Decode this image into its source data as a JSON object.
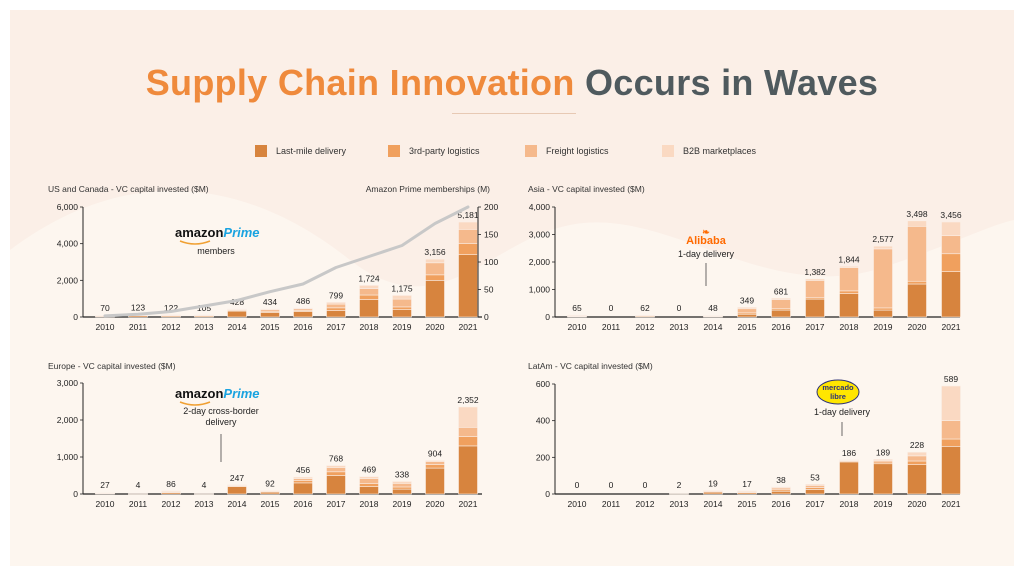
{
  "title": {
    "part1": "Supply Chain Innovation",
    "part2": "Occurs in Waves"
  },
  "colors": {
    "accent": "#ef8a3c",
    "title_gray": "#4f5a5e",
    "background": "#fbefe7",
    "prime_line": "#c8c8c8"
  },
  "legend": [
    {
      "label": "Last-mile delivery",
      "color": "#d7843e"
    },
    {
      "label": "3rd-party logistics",
      "color": "#f0a05e"
    },
    {
      "label": "Freight logistics",
      "color": "#f5b98c"
    },
    {
      "label": "B2B marketplaces",
      "color": "#fad9c2"
    }
  ],
  "chart_data": [
    {
      "type": "bar",
      "title": "US and Canada - VC capital invested ($M)",
      "categories": [
        "2010",
        "2011",
        "2012",
        "2013",
        "2014",
        "2015",
        "2016",
        "2017",
        "2018",
        "2019",
        "2020",
        "2021"
      ],
      "totals": [
        70,
        123,
        122,
        105,
        428,
        434,
        486,
        799,
        1724,
        1175,
        3156,
        5181
      ],
      "total_labels": [
        "70",
        "123",
        "122",
        "105",
        "428",
        "434",
        "486",
        "799",
        "1,724",
        "1,175",
        "3,156",
        "5,181"
      ],
      "series": [
        {
          "name": "Last-mile delivery",
          "values": [
            40,
            70,
            60,
            60,
            320,
            250,
            300,
            350,
            950,
            400,
            2000,
            3400
          ]
        },
        {
          "name": "3rd-party logistics",
          "values": [
            10,
            20,
            20,
            15,
            40,
            60,
            60,
            150,
            250,
            150,
            300,
            600
          ]
        },
        {
          "name": "Freight logistics",
          "values": [
            10,
            23,
            22,
            20,
            40,
            84,
            86,
            200,
            350,
            425,
            656,
            781
          ]
        },
        {
          "name": "B2B marketplaces",
          "values": [
            10,
            10,
            20,
            10,
            28,
            40,
            40,
            99,
            174,
            200,
            200,
            400
          ]
        }
      ],
      "ylim": [
        0,
        6000
      ],
      "yticks": [
        "0",
        "2,000",
        "4,000",
        "6,000"
      ],
      "secondary_axis": {
        "label": "Amazon Prime memberships (M)",
        "ylim": [
          0,
          200
        ],
        "yticks": [
          "0",
          "50",
          "100",
          "150",
          "200"
        ],
        "values": [
          2,
          5,
          10,
          20,
          30,
          46,
          60,
          90,
          110,
          130,
          170,
          200
        ]
      },
      "annotation": {
        "logo_word1": "amazon",
        "logo_word2": "Prime",
        "text": "members"
      }
    },
    {
      "type": "bar",
      "title": "Asia - VC capital invested ($M)",
      "categories": [
        "2010",
        "2011",
        "2012",
        "2013",
        "2014",
        "2015",
        "2016",
        "2017",
        "2018",
        "2019",
        "2020",
        "2021"
      ],
      "totals": [
        65,
        0,
        62,
        0,
        48,
        349,
        681,
        1382,
        1844,
        2577,
        3498,
        3456
      ],
      "total_labels": [
        "65",
        "0",
        "62",
        "0",
        "48",
        "349",
        "681",
        "1,382",
        "1,844",
        "2,577",
        "3,498",
        "3,456"
      ],
      "series": [
        {
          "name": "Last-mile delivery",
          "values": [
            20,
            0,
            30,
            0,
            20,
            100,
            250,
            650,
            850,
            250,
            1200,
            1650
          ]
        },
        {
          "name": "3rd-party logistics",
          "values": [
            10,
            0,
            10,
            0,
            10,
            50,
            50,
            50,
            100,
            80,
            100,
            650
          ]
        },
        {
          "name": "Freight logistics",
          "values": [
            25,
            0,
            12,
            0,
            10,
            150,
            331,
            632,
            844,
            2147,
            1998,
            656
          ]
        },
        {
          "name": "B2B marketplaces",
          "values": [
            10,
            0,
            10,
            0,
            8,
            49,
            50,
            50,
            50,
            100,
            200,
            500
          ]
        }
      ],
      "ylim": [
        0,
        4000
      ],
      "yticks": [
        "0",
        "1,000",
        "2,000",
        "3,000",
        "4,000"
      ],
      "annotation": {
        "logo_word1": "Alibaba",
        "text": "1-day delivery"
      }
    },
    {
      "type": "bar",
      "title": "Europe - VC capital invested ($M)",
      "categories": [
        "2010",
        "2011",
        "2012",
        "2013",
        "2014",
        "2015",
        "2016",
        "2017",
        "2018",
        "2019",
        "2020",
        "2021"
      ],
      "totals": [
        27,
        4,
        86,
        4,
        247,
        92,
        456,
        768,
        469,
        338,
        904,
        2352
      ],
      "total_labels": [
        "27",
        "4",
        "86",
        "4",
        "247",
        "92",
        "456",
        "768",
        "469",
        "338",
        "904",
        "2,352"
      ],
      "series": [
        {
          "name": "Last-mile delivery",
          "values": [
            15,
            2,
            40,
            2,
            200,
            50,
            300,
            500,
            200,
            130,
            700,
            1300
          ]
        },
        {
          "name": "3rd-party logistics",
          "values": [
            4,
            1,
            16,
            1,
            20,
            10,
            60,
            100,
            80,
            60,
            100,
            250
          ]
        },
        {
          "name": "Freight logistics",
          "values": [
            4,
            1,
            20,
            1,
            17,
            22,
            56,
            118,
            139,
            98,
            74,
            252
          ]
        },
        {
          "name": "B2B marketplaces",
          "values": [
            4,
            0,
            10,
            0,
            10,
            10,
            40,
            50,
            50,
            50,
            30,
            550
          ]
        }
      ],
      "ylim": [
        0,
        3000
      ],
      "yticks": [
        "0",
        "1,000",
        "2,000",
        "3,000"
      ],
      "annotation": {
        "logo_word1": "amazon",
        "logo_word2": "Prime",
        "text": "2-day cross-border delivery"
      }
    },
    {
      "type": "bar",
      "title": "LatAm - VC capital invested ($M)",
      "categories": [
        "2010",
        "2011",
        "2012",
        "2013",
        "2014",
        "2015",
        "2016",
        "2017",
        "2018",
        "2019",
        "2020",
        "2021"
      ],
      "totals": [
        0,
        0,
        0,
        2,
        19,
        17,
        38,
        53,
        186,
        189,
        228,
        589
      ],
      "total_labels": [
        "0",
        "0",
        "0",
        "2",
        "19",
        "17",
        "38",
        "53",
        "186",
        "189",
        "228",
        "589"
      ],
      "series": [
        {
          "name": "Last-mile delivery",
          "values": [
            0,
            0,
            0,
            1,
            10,
            8,
            15,
            25,
            175,
            165,
            160,
            260
          ]
        },
        {
          "name": "3rd-party logistics",
          "values": [
            0,
            0,
            0,
            0,
            3,
            3,
            8,
            10,
            5,
            10,
            20,
            40
          ]
        },
        {
          "name": "Freight logistics",
          "values": [
            0,
            0,
            0,
            1,
            4,
            4,
            10,
            12,
            3,
            8,
            28,
            100
          ]
        },
        {
          "name": "B2B marketplaces",
          "values": [
            0,
            0,
            0,
            0,
            2,
            2,
            5,
            6,
            3,
            6,
            20,
            189
          ]
        }
      ],
      "ylim": [
        0,
        600
      ],
      "yticks": [
        "0",
        "200",
        "400",
        "600"
      ],
      "annotation": {
        "logo_word1": "mercado",
        "logo_word2": "libre",
        "text": "1-day delivery"
      }
    }
  ]
}
